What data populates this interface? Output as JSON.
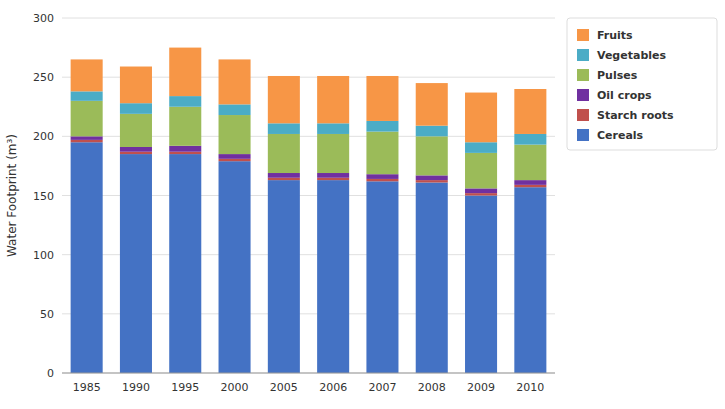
{
  "chart_data": {
    "type": "bar",
    "stacked": true,
    "ylabel": "Water Footprint (m³)",
    "categories": [
      "1985",
      "1990",
      "1995",
      "2000",
      "2005",
      "2006",
      "2007",
      "2008",
      "2009",
      "2010"
    ],
    "series": [
      {
        "name": "Cereals",
        "color": "#4472C4",
        "values": [
          195,
          185,
          185,
          179,
          163,
          163,
          162,
          161,
          150,
          157
        ]
      },
      {
        "name": "Starch roots",
        "color": "#C0504D",
        "values": [
          2,
          2,
          2,
          2,
          2,
          2,
          2,
          2,
          2,
          2
        ]
      },
      {
        "name": "Oil crops",
        "color": "#7030A0",
        "values": [
          3,
          4,
          5,
          4,
          4,
          4,
          4,
          4,
          4,
          4
        ]
      },
      {
        "name": "Pulses",
        "color": "#9BBB59",
        "values": [
          30,
          28,
          33,
          33,
          33,
          33,
          36,
          33,
          30,
          30
        ]
      },
      {
        "name": "Vegetables",
        "color": "#4BACC6",
        "values": [
          8,
          9,
          9,
          9,
          9,
          9,
          9,
          9,
          9,
          9
        ]
      },
      {
        "name": "Fruits",
        "color": "#F79646",
        "values": [
          27,
          31,
          41,
          38,
          40,
          40,
          38,
          36,
          42,
          38
        ]
      }
    ],
    "ylim": [
      0,
      300
    ],
    "yticks": [
      0,
      50,
      100,
      150,
      200,
      250,
      300
    ],
    "grid": true,
    "legend": "upper right"
  }
}
